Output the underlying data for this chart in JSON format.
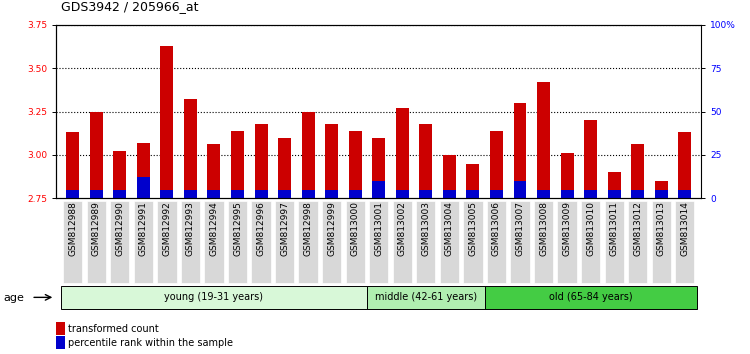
{
  "title": "GDS3942 / 205966_at",
  "categories": [
    "GSM812988",
    "GSM812989",
    "GSM812990",
    "GSM812991",
    "GSM812992",
    "GSM812993",
    "GSM812994",
    "GSM812995",
    "GSM812996",
    "GSM812997",
    "GSM812998",
    "GSM812999",
    "GSM813000",
    "GSM813001",
    "GSM813002",
    "GSM813003",
    "GSM813004",
    "GSM813005",
    "GSM813006",
    "GSM813007",
    "GSM813008",
    "GSM813009",
    "GSM813010",
    "GSM813011",
    "GSM813012",
    "GSM813013",
    "GSM813014"
  ],
  "red_values": [
    3.13,
    3.25,
    3.02,
    3.07,
    3.63,
    3.32,
    3.06,
    3.14,
    3.18,
    3.1,
    3.25,
    3.18,
    3.14,
    3.1,
    3.27,
    3.18,
    3.0,
    2.95,
    3.14,
    3.3,
    3.42,
    3.01,
    3.2,
    2.9,
    3.06,
    2.85,
    3.13
  ],
  "blue_values_pct": [
    5,
    5,
    5,
    12,
    5,
    5,
    5,
    5,
    5,
    5,
    5,
    5,
    5,
    10,
    5,
    5,
    5,
    5,
    5,
    10,
    5,
    5,
    5,
    5,
    5,
    5,
    5
  ],
  "baseline": 2.75,
  "ylim": [
    2.75,
    3.75
  ],
  "yticks": [
    2.75,
    3.0,
    3.25,
    3.5,
    3.75
  ],
  "right_ylim": [
    0,
    100
  ],
  "right_yticks": [
    0,
    25,
    50,
    75,
    100
  ],
  "right_yticklabels": [
    "0",
    "25",
    "50",
    "75",
    "100%"
  ],
  "groups": [
    {
      "label": "young (19-31 years)",
      "start": 0,
      "end": 13,
      "color": "#d8f8d8"
    },
    {
      "label": "middle (42-61 years)",
      "start": 13,
      "end": 18,
      "color": "#b0eeb0"
    },
    {
      "label": "old (65-84 years)",
      "start": 18,
      "end": 27,
      "color": "#44cc44"
    }
  ],
  "age_label": "age",
  "bar_width": 0.55,
  "red_color": "#cc0000",
  "blue_color": "#0000cc",
  "legend_red": "transformed count",
  "legend_blue": "percentile rank within the sample",
  "title_fontsize": 9,
  "tick_fontsize": 6.5,
  "label_fontsize": 8
}
